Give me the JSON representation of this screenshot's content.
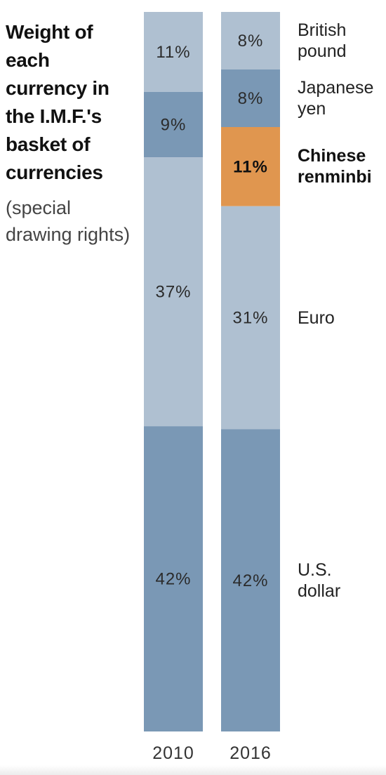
{
  "title": "Weight of each currency in the I.M.F.'s basket of currencies",
  "subtitle": "(special drawing rights)",
  "colors": {
    "light": "#afc0d1",
    "dark": "#7a98b5",
    "highlight": "#e0964f"
  },
  "chart_data": {
    "type": "bar",
    "stacked": true,
    "normalized": true,
    "categories": [
      "2010",
      "2016"
    ],
    "currencies": [
      {
        "name": "British pound",
        "values": [
          11,
          8
        ],
        "value_labels": [
          "11%",
          "8%"
        ],
        "color": "light",
        "highlight": false
      },
      {
        "name": "Japanese yen",
        "values": [
          9,
          8
        ],
        "value_labels": [
          "9%",
          "8%"
        ],
        "color": "dark",
        "highlight": false
      },
      {
        "name": "Chinese renminbi",
        "values": [
          0,
          11
        ],
        "value_labels": [
          "",
          "11%"
        ],
        "color": "highlight",
        "highlight": true
      },
      {
        "name": "Euro",
        "values": [
          37,
          31
        ],
        "value_labels": [
          "37%",
          "31%"
        ],
        "color": "light",
        "highlight": false
      },
      {
        "name": "U.S. dollar",
        "values": [
          42,
          42
        ],
        "value_labels": [
          "42%",
          "42%"
        ],
        "color": "dark",
        "highlight": false
      }
    ],
    "currency_labels": [
      {
        "lines": [
          "British",
          "pound"
        ],
        "highlight": false
      },
      {
        "lines": [
          "Japanese",
          "yen"
        ],
        "highlight": false
      },
      {
        "lines": [
          "Chinese",
          "renminbi"
        ],
        "highlight": true
      },
      {
        "lines": [
          "Euro"
        ],
        "highlight": false
      },
      {
        "lines": [
          "U.S.",
          "dollar"
        ],
        "highlight": false
      }
    ],
    "legend": "right"
  }
}
